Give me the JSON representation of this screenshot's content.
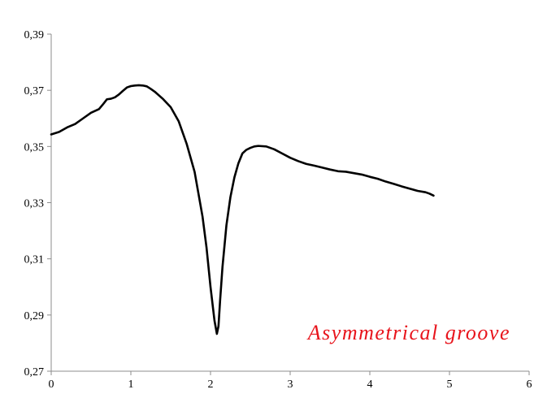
{
  "chart_data": {
    "type": "line",
    "title": "",
    "xlabel": "",
    "ylabel": "",
    "xlim": [
      0,
      6
    ],
    "ylim": [
      0.27,
      0.39
    ],
    "x_ticks": [
      0,
      1,
      2,
      3,
      4,
      5,
      6
    ],
    "y_ticks": [
      0.27,
      0.29,
      0.31,
      0.33,
      0.35,
      0.37,
      0.39
    ],
    "x_tick_labels": [
      "0",
      "1",
      "2",
      "3",
      "4",
      "5",
      "6"
    ],
    "y_tick_labels": [
      "0,27",
      "0,29",
      "0,31",
      "0,33",
      "0,35",
      "0,37",
      "0,39"
    ],
    "grid": false,
    "legend": "none",
    "annotation": {
      "text": "Asymmetrical groove",
      "color": "#e8141c"
    },
    "series": [
      {
        "color": "#000000",
        "x": [
          0.0,
          0.1,
          0.2,
          0.3,
          0.4,
          0.5,
          0.6,
          0.65,
          0.7,
          0.75,
          0.8,
          0.85,
          0.9,
          0.95,
          1.0,
          1.05,
          1.1,
          1.15,
          1.2,
          1.25,
          1.3,
          1.4,
          1.5,
          1.6,
          1.7,
          1.8,
          1.9,
          1.95,
          2.0,
          2.05,
          2.08,
          2.1,
          2.12,
          2.15,
          2.2,
          2.25,
          2.3,
          2.35,
          2.4,
          2.45,
          2.5,
          2.55,
          2.6,
          2.7,
          2.8,
          2.9,
          3.0,
          3.1,
          3.2,
          3.3,
          3.4,
          3.5,
          3.6,
          3.7,
          3.8,
          3.9,
          4.0,
          4.1,
          4.2,
          4.3,
          4.4,
          4.5,
          4.6,
          4.7,
          4.75,
          4.8
        ],
        "y": [
          0.3543,
          0.3552,
          0.3568,
          0.358,
          0.36,
          0.362,
          0.3633,
          0.365,
          0.3668,
          0.367,
          0.3675,
          0.3685,
          0.3698,
          0.371,
          0.3715,
          0.3717,
          0.3718,
          0.3717,
          0.3714,
          0.3705,
          0.3695,
          0.367,
          0.364,
          0.359,
          0.351,
          0.341,
          0.325,
          0.314,
          0.3,
          0.288,
          0.2833,
          0.286,
          0.295,
          0.307,
          0.322,
          0.332,
          0.339,
          0.344,
          0.3475,
          0.3488,
          0.3495,
          0.35,
          0.3502,
          0.35,
          0.349,
          0.3475,
          0.346,
          0.3448,
          0.3438,
          0.3432,
          0.3425,
          0.3418,
          0.3412,
          0.341,
          0.3405,
          0.34,
          0.3392,
          0.3385,
          0.3375,
          0.3367,
          0.3358,
          0.335,
          0.3342,
          0.3337,
          0.3332,
          0.3325
        ]
      }
    ]
  }
}
